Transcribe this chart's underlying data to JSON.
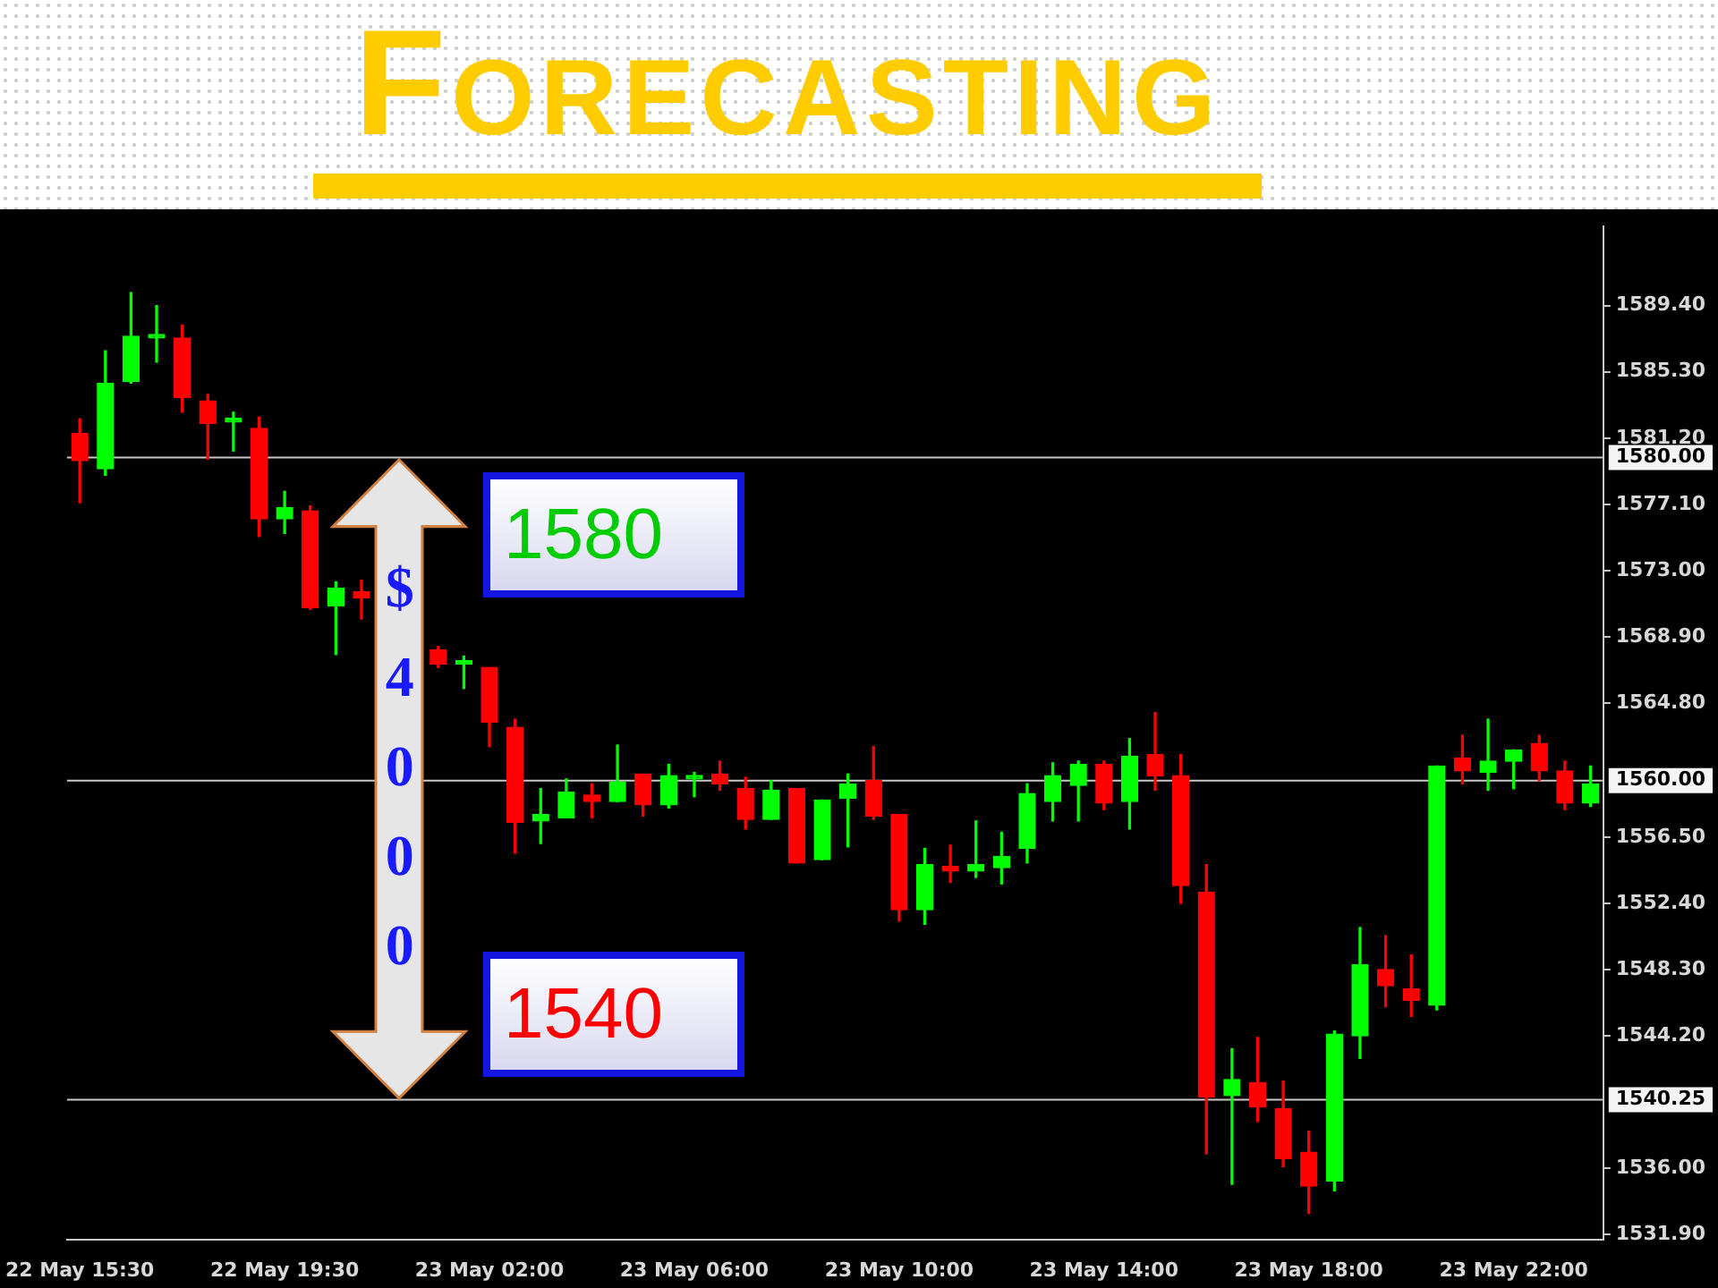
{
  "chart_data": {
    "type": "candlestick",
    "title": "FORECASTING",
    "categories": [
      "22 May 15:30",
      null,
      null,
      null,
      null,
      null,
      null,
      null,
      "22 May 19:30",
      null,
      null,
      null,
      null,
      null,
      null,
      null,
      "23 May 02:00",
      null,
      null,
      null,
      null,
      null,
      null,
      null,
      "23 May 06:00",
      null,
      null,
      null,
      null,
      null,
      null,
      null,
      "23 May 10:00",
      null,
      null,
      null,
      null,
      null,
      null,
      null,
      "23 May 14:00",
      null,
      null,
      null,
      null,
      null,
      null,
      null,
      "23 May 18:00",
      null,
      null,
      null,
      null,
      null,
      null,
      null,
      "23 May 22:00",
      null,
      null,
      null
    ],
    "ohlc": [
      [
        1581.5,
        1582.4,
        1577.2,
        1579.8
      ],
      [
        1579.3,
        1586.6,
        1578.9,
        1584.6
      ],
      [
        1584.7,
        1590.2,
        1584.6,
        1587.5
      ],
      [
        1587.4,
        1589.4,
        1585.9,
        1587.6
      ],
      [
        1587.4,
        1588.2,
        1582.8,
        1583.7
      ],
      [
        1583.5,
        1583.9,
        1579.9,
        1582.1
      ],
      [
        1582.2,
        1582.8,
        1580.4,
        1582.3
      ],
      [
        1581.8,
        1582.5,
        1575.1,
        1576.2
      ],
      [
        1576.2,
        1577.9,
        1575.3,
        1576.9
      ],
      [
        1576.7,
        1577.0,
        1570.6,
        1570.7
      ],
      [
        1570.8,
        1572.3,
        1567.8,
        1571.9
      ],
      [
        1571.7,
        1572.4,
        1570.0,
        1571.3
      ],
      null,
      null,
      [
        1568.1,
        1568.3,
        1567.0,
        1567.2
      ],
      [
        1567.2,
        1567.7,
        1565.7,
        1567.3
      ],
      [
        1567.0,
        1567.0,
        1562.1,
        1563.6
      ],
      [
        1563.3,
        1563.8,
        1555.5,
        1557.4
      ],
      [
        1557.5,
        1559.5,
        1556.1,
        1557.9
      ],
      [
        1557.7,
        1560.1,
        1557.7,
        1559.3
      ],
      [
        1559.1,
        1559.8,
        1557.7,
        1558.7
      ],
      [
        1558.7,
        1562.2,
        1558.7,
        1559.9
      ],
      [
        1560.4,
        1560.4,
        1557.8,
        1558.5
      ],
      [
        1558.5,
        1561.0,
        1558.3,
        1560.3
      ],
      [
        1560.1,
        1560.5,
        1559.0,
        1560.3
      ],
      [
        1560.4,
        1561.2,
        1559.4,
        1559.8
      ],
      [
        1559.5,
        1560.2,
        1557.0,
        1557.6
      ],
      [
        1557.6,
        1560.0,
        1557.6,
        1559.4
      ],
      [
        1559.5,
        1559.5,
        1554.9,
        1554.9
      ],
      [
        1555.1,
        1558.8,
        1555.1,
        1558.8
      ],
      [
        1558.9,
        1560.4,
        1555.9,
        1559.8
      ],
      [
        1560.0,
        1562.1,
        1557.6,
        1557.8
      ],
      [
        1557.9,
        1557.9,
        1551.3,
        1552.0
      ],
      [
        1552.0,
        1555.8,
        1551.1,
        1554.8
      ],
      [
        1554.7,
        1556.0,
        1553.7,
        1554.4
      ],
      [
        1554.4,
        1557.5,
        1554.0,
        1554.8
      ],
      [
        1554.6,
        1556.8,
        1553.6,
        1555.3
      ],
      [
        1555.8,
        1559.8,
        1554.9,
        1559.2
      ],
      [
        1558.7,
        1561.1,
        1557.5,
        1560.3
      ],
      [
        1559.7,
        1561.2,
        1557.5,
        1561.0
      ],
      [
        1561.0,
        1561.2,
        1558.2,
        1558.6
      ],
      [
        1558.7,
        1562.6,
        1557.0,
        1561.5
      ],
      [
        1561.6,
        1564.2,
        1559.4,
        1560.3
      ],
      [
        1560.3,
        1561.6,
        1552.4,
        1553.5
      ],
      [
        1553.1,
        1554.8,
        1536.9,
        1540.4
      ],
      [
        1540.5,
        1543.4,
        1535.0,
        1541.5
      ],
      [
        1541.3,
        1544.1,
        1538.9,
        1539.8
      ],
      [
        1539.7,
        1541.4,
        1536.1,
        1536.6
      ],
      [
        1537.0,
        1538.3,
        1533.2,
        1534.9
      ],
      [
        1535.2,
        1544.5,
        1534.6,
        1544.3
      ],
      [
        1544.2,
        1550.9,
        1542.8,
        1548.6
      ],
      [
        1548.3,
        1550.4,
        1546.0,
        1547.3
      ],
      [
        1547.1,
        1549.2,
        1545.4,
        1546.4
      ],
      [
        1546.1,
        1560.9,
        1545.8,
        1560.9
      ],
      [
        1561.4,
        1562.8,
        1559.8,
        1560.6
      ],
      [
        1560.5,
        1563.8,
        1559.4,
        1561.2
      ],
      [
        1561.2,
        1561.9,
        1559.5,
        1561.9
      ],
      [
        1562.3,
        1562.8,
        1560.0,
        1560.6
      ],
      [
        1560.6,
        1561.2,
        1558.2,
        1558.6
      ],
      [
        1558.6,
        1560.9,
        1558.4,
        1559.8
      ]
    ],
    "colors": [
      "#ff0000",
      "#00ff00",
      "#00ff00",
      "#00ff00",
      "#ff0000",
      "#ff0000",
      "#00ff00",
      "#ff0000",
      "#00ff00",
      "#ff0000",
      "#00ff00",
      "#ff0000",
      null,
      null,
      "#ff0000",
      "#00ff00",
      "#ff0000",
      "#ff0000",
      "#00ff00",
      "#00ff00",
      "#ff0000",
      "#00ff00",
      "#ff0000",
      "#00ff00",
      "#00ff00",
      "#ff0000",
      "#ff0000",
      "#00ff00",
      "#ff0000",
      "#00ff00",
      "#00ff00",
      "#ff0000",
      "#ff0000",
      "#00ff00",
      "#ff0000",
      "#00ff00",
      "#00ff00",
      "#00ff00",
      "#00ff00",
      "#00ff00",
      "#ff0000",
      "#00ff00",
      "#ff0000",
      "#ff0000",
      "#ff0000",
      "#00ff00",
      "#ff0000",
      "#ff0000",
      "#ff0000",
      "#00ff00",
      "#00ff00",
      "#ff0000",
      "#ff0000",
      "#00ff00",
      "#ff0000",
      "#00ff00",
      "#00ff00",
      "#ff0000",
      "#ff0000",
      "#00ff00"
    ],
    "ylim": [
      1531.6,
      1594.3
    ],
    "yticks": [
      {
        "value": 1589.4,
        "label": "1589.40"
      },
      {
        "value": 1585.3,
        "label": "1585.30"
      },
      {
        "value": 1581.2,
        "label": "1581.20"
      },
      {
        "value": 1577.1,
        "label": "1577.10"
      },
      {
        "value": 1573,
        "label": "1573.00"
      },
      {
        "value": 1568.9,
        "label": "1568.90"
      },
      {
        "value": 1564.8,
        "label": "1564.80"
      },
      {
        "value": 1556.5,
        "label": "1556.50"
      },
      {
        "value": 1552.4,
        "label": "1552.40"
      },
      {
        "value": 1548.3,
        "label": "1548.30"
      },
      {
        "value": 1544.2,
        "label": "1544.20"
      },
      {
        "value": 1536,
        "label": "1536.00"
      },
      {
        "value": 1531.9,
        "label": "1531.90"
      }
    ],
    "ref_lines": [
      {
        "axis": "y",
        "value": 1580,
        "label": "1580.00",
        "color": "#c8c8c8"
      },
      {
        "axis": "y",
        "value": 1560,
        "label": "1560.00",
        "color": "#c8c8c8"
      },
      {
        "axis": "y",
        "value": 1540.25,
        "label": "1540.25",
        "color": "#c8c8c8"
      }
    ],
    "annotations": [
      "$4000",
      "1580",
      "1540"
    ],
    "grid": false,
    "legend": false
  }
}
